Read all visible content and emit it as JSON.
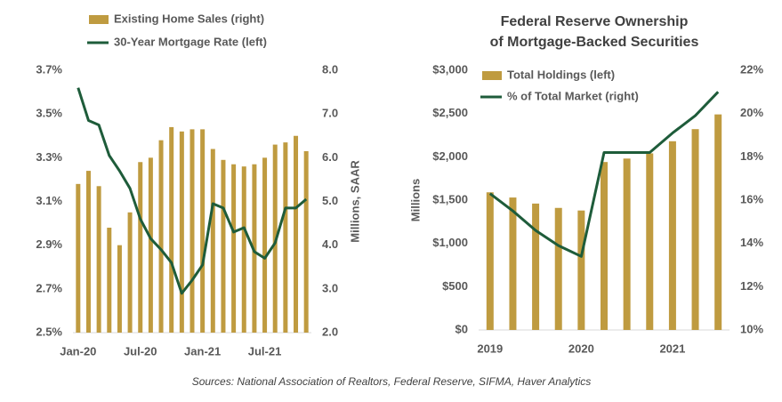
{
  "chart_data": [
    {
      "type": "combo",
      "categories": [
        "Jan-20",
        null,
        null,
        null,
        null,
        null,
        "Jul-20",
        null,
        null,
        null,
        null,
        null,
        "Jan-21",
        null,
        null,
        null,
        null,
        null,
        "Jul-21",
        null,
        null,
        null,
        null
      ],
      "series": [
        {
          "name": "Existing Home Sales (right)",
          "type": "bar",
          "axis": "y2",
          "color": "#bf9b40",
          "values": [
            5.4,
            5.7,
            5.35,
            4.4,
            4.0,
            4.75,
            5.9,
            6.0,
            6.4,
            6.7,
            6.6,
            6.65,
            6.65,
            6.2,
            5.95,
            5.85,
            5.8,
            5.85,
            6.0,
            6.3,
            6.35,
            6.5,
            6.15
          ]
        },
        {
          "name": "30-Year Mortgage Rate (left)",
          "type": "line",
          "axis": "y",
          "color": "#1e5c3a",
          "values": [
            3.62,
            3.47,
            3.45,
            3.31,
            3.24,
            3.16,
            3.02,
            2.93,
            2.88,
            2.82,
            2.68,
            2.74,
            2.81,
            3.09,
            3.07,
            2.96,
            2.98,
            2.87,
            2.84,
            2.91,
            3.07,
            3.07,
            3.11
          ]
        }
      ],
      "ylim": [
        2.5,
        3.7
      ],
      "yticks": [
        {
          "value": 2.5,
          "label": "2.5%"
        },
        {
          "value": 2.7,
          "label": "2.7%"
        },
        {
          "value": 2.9,
          "label": "2.9%"
        },
        {
          "value": 3.1,
          "label": "3.1%"
        },
        {
          "value": 3.3,
          "label": "3.3%"
        },
        {
          "value": 3.5,
          "label": "3.5%"
        },
        {
          "value": 3.7,
          "label": "3.7%"
        }
      ],
      "y2lim": [
        2,
        8
      ],
      "y2ticks": [
        {
          "value": 2,
          "label": "2.0"
        },
        {
          "value": 3,
          "label": "3.0"
        },
        {
          "value": 4,
          "label": "4.0"
        },
        {
          "value": 5,
          "label": "5.0"
        },
        {
          "value": 6,
          "label": "6.0"
        },
        {
          "value": 7,
          "label": "7.0"
        },
        {
          "value": 8,
          "label": "8.0"
        }
      ],
      "y2_label": "Millions, SAAR"
    },
    {
      "type": "combo",
      "title": [
        "Federal Reserve Ownership",
        "of Mortgage-Backed Securities"
      ],
      "categories": [
        "2019",
        null,
        null,
        null,
        "2020",
        null,
        null,
        null,
        "2021",
        null,
        null
      ],
      "series": [
        {
          "name": "Total Holdings (left)",
          "type": "bar",
          "axis": "y",
          "color": "#bf9b40",
          "values": [
            1590,
            1530,
            1460,
            1410,
            1380,
            1940,
            1980,
            2040,
            2180,
            2320,
            2490
          ]
        },
        {
          "name": "% of Total Market (right)",
          "type": "line",
          "axis": "y2",
          "color": "#1e5c3a",
          "values": [
            16.3,
            15.5,
            14.6,
            13.9,
            13.4,
            18.2,
            18.2,
            18.2,
            19.1,
            19.9,
            21.0
          ]
        }
      ],
      "ylim": [
        0,
        3000
      ],
      "yticks": [
        {
          "value": 0,
          "label": "$0"
        },
        {
          "value": 500,
          "label": "$500"
        },
        {
          "value": 1000,
          "label": "$1,000"
        },
        {
          "value": 1500,
          "label": "$1,500"
        },
        {
          "value": 2000,
          "label": "$2,000"
        },
        {
          "value": 2500,
          "label": "$2,500"
        },
        {
          "value": 3000,
          "label": "$3,000"
        }
      ],
      "y2lim": [
        10,
        22
      ],
      "y2ticks": [
        {
          "value": 10,
          "label": "10%"
        },
        {
          "value": 12,
          "label": "12%"
        },
        {
          "value": 14,
          "label": "14%"
        },
        {
          "value": 16,
          "label": "16%"
        },
        {
          "value": 18,
          "label": "18%"
        },
        {
          "value": 20,
          "label": "20%"
        },
        {
          "value": 22,
          "label": "22%"
        }
      ],
      "y_label": "Millions"
    }
  ],
  "source": "Sources: National Association of Realtors, Federal Reserve, SIFMA, Haver Analytics"
}
